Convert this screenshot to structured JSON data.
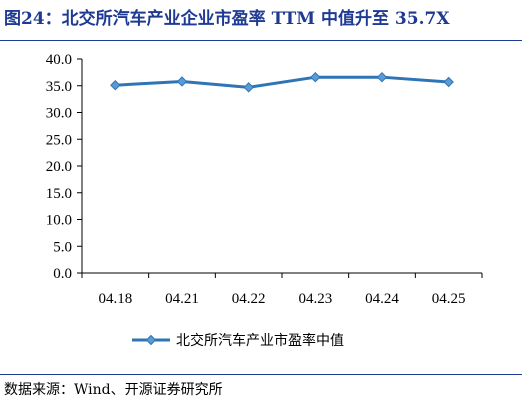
{
  "header": {
    "title": "图24：北交所汽车产业企业市盈率 TTM 中值升至 35.7X"
  },
  "chart_data": {
    "type": "line",
    "categories": [
      "04.18",
      "04.21",
      "04.22",
      "04.23",
      "04.24",
      "04.25"
    ],
    "series": [
      {
        "name": "北交所汽车产业市盈率中值",
        "values": [
          35.1,
          35.8,
          34.7,
          36.6,
          36.6,
          35.7
        ]
      }
    ],
    "ylim": [
      0,
      40
    ],
    "yticks": [
      "0.0",
      "5.0",
      "10.0",
      "15.0",
      "20.0",
      "25.0",
      "30.0",
      "35.0",
      "40.0"
    ],
    "grid": false,
    "legend_position": "bottom",
    "line_color": "#2e75b6",
    "marker_color": "#5b9bd5"
  },
  "footer": {
    "source": "数据来源：Wind、开源证券研究所"
  }
}
